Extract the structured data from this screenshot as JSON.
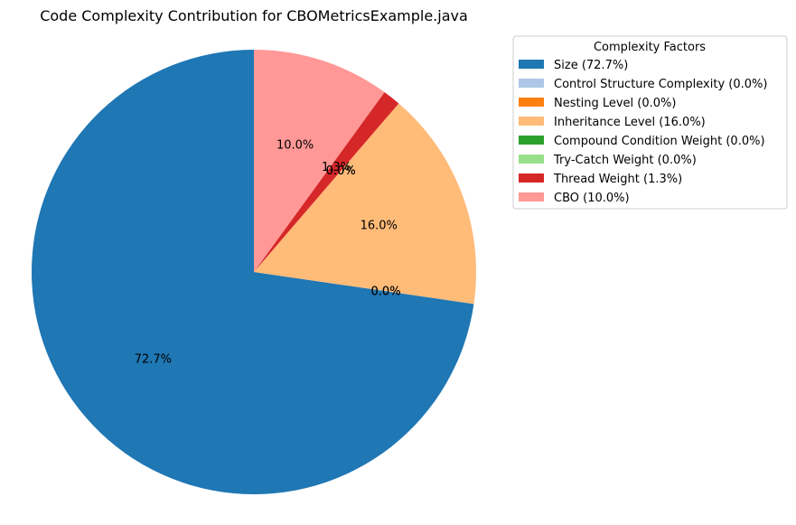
{
  "chart_data": {
    "type": "pie",
    "title": "Code Complexity Contribution for CBOMetricsExample.java",
    "legend_title": "Complexity Factors",
    "legend_placement": "right",
    "slices": [
      {
        "label": "Size",
        "value": 72.7,
        "pct_label": "72.7%",
        "legend": "Size (72.7%)",
        "color": "#1f77b4"
      },
      {
        "label": "Control Structure Complexity",
        "value": 0.0,
        "pct_label": "0.0%",
        "legend": "Control Structure Complexity (0.0%)",
        "color": "#aec7e8"
      },
      {
        "label": "Nesting Level",
        "value": 0.0,
        "pct_label": "0.0%",
        "legend": "Nesting Level (0.0%)",
        "color": "#ff7f0e"
      },
      {
        "label": "Inheritance Level",
        "value": 16.0,
        "pct_label": "16.0%",
        "legend": "Inheritance Level (16.0%)",
        "color": "#ffbb78"
      },
      {
        "label": "Compound Condition Weight",
        "value": 0.0,
        "pct_label": "0.0%",
        "legend": "Compound Condition Weight (0.0%)",
        "color": "#2ca02c"
      },
      {
        "label": "Try-Catch Weight",
        "value": 0.0,
        "pct_label": "0.0%",
        "legend": "Try-Catch Weight (0.0%)",
        "color": "#98df8a"
      },
      {
        "label": "Thread Weight",
        "value": 1.3,
        "pct_label": "1.3%",
        "legend": "Thread Weight (1.3%)",
        "color": "#d62728"
      },
      {
        "label": "CBO",
        "value": 10.0,
        "pct_label": "10.0%",
        "legend": "CBO (10.0%)",
        "color": "#ff9896"
      }
    ]
  }
}
